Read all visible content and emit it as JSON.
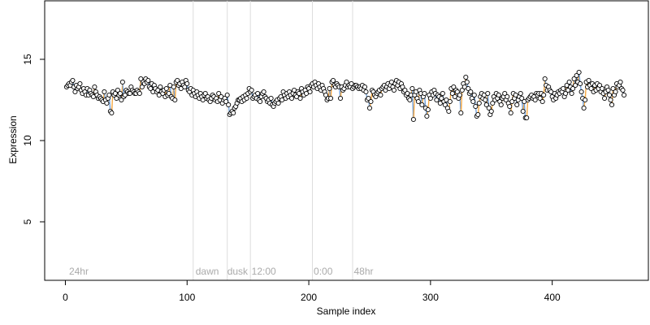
{
  "chart_data": {
    "type": "scatter",
    "title": "",
    "xlabel": "Sample index",
    "ylabel": "Expression",
    "xlim": [
      -17,
      479
    ],
    "ylim": [
      1.4,
      18.6
    ],
    "xticks": [
      0,
      100,
      200,
      300,
      400
    ],
    "yticks": [
      5,
      10,
      15
    ],
    "grid": false,
    "region_lines_x": [
      105,
      133,
      152,
      203,
      236
    ],
    "region_labels": [
      {
        "x": 3,
        "text": "24hr"
      },
      {
        "x": 107,
        "text": "dawn"
      },
      {
        "x": 133,
        "text": "dusk"
      },
      {
        "x": 153,
        "text": "12:00"
      },
      {
        "x": 204,
        "text": "0:00"
      },
      {
        "x": 237,
        "text": "48hr"
      }
    ],
    "colors": {
      "point_fill": "#ffffff",
      "point_stroke": "#000000",
      "segment_up": "#f5a742",
      "segment_down": "#6f9fd8",
      "fill_up": "#f8c98a",
      "fill_down": "#a9c4e8",
      "region_line": "#dddddd",
      "region_text": "#aaaaaa"
    },
    "series": [
      {
        "step": 1,
        "x0": 1,
        "y": [
          13.3,
          13.4,
          13.5,
          13.4,
          13.6,
          13.7,
          13.3,
          13.0,
          13.4,
          13.2,
          13.3,
          13.5,
          13.1,
          12.9,
          13.2,
          13.0,
          12.8,
          13.2,
          12.8,
          13.1,
          12.9,
          12.8,
          12.7,
          13.3,
          13.0,
          12.8,
          12.6,
          12.7,
          12.6,
          12.5,
          12.4,
          13.0,
          12.5,
          12.3,
          12.6,
          12.8,
          11.8,
          11.7,
          13.0,
          12.8,
          12.9,
          12.6,
          13.1,
          12.8,
          12.9,
          12.5,
          13.6,
          12.7,
          12.8,
          13.1,
          13.0,
          12.9,
          12.9,
          13.3,
          13.1,
          13.0,
          12.9,
          12.9,
          13.1,
          13.0,
          12.9,
          13.8,
          13.3,
          13.6,
          13.5,
          13.8,
          13.6,
          13.7,
          13.3,
          13.2,
          13.5,
          13.0,
          13.4,
          13.2,
          13.0,
          13.1,
          12.8,
          13.3,
          13.0,
          12.9,
          13.1,
          12.7,
          13.2,
          12.8,
          12.9,
          13.4,
          12.7,
          12.6,
          13.3,
          12.5,
          13.6,
          13.7,
          13.4,
          13.5,
          13.2,
          13.6,
          13.4,
          13.3,
          13.7,
          13.5,
          13.1,
          13.0,
          13.2,
          12.8,
          13.1,
          12.9,
          12.7,
          13.0,
          12.8,
          12.6,
          12.9,
          12.7,
          12.5,
          12.8,
          12.9,
          12.6,
          12.7,
          12.5,
          12.4,
          12.6,
          12.8,
          12.7,
          12.5,
          12.6,
          12.4,
          12.9,
          12.5,
          12.7,
          12.3,
          12.5,
          12.6,
          12.4,
          12.8,
          12.2,
          11.6,
          11.7,
          11.8,
          11.7,
          12.0,
          12.1,
          12.3,
          12.5,
          12.5,
          12.6,
          12.4,
          12.7,
          12.5,
          12.8,
          12.6,
          12.9,
          13.2,
          13.0,
          13.1,
          12.6,
          12.7,
          12.8,
          12.6,
          12.9,
          12.5,
          12.4,
          12.7,
          12.9,
          13.0,
          12.7,
          12.6,
          12.4,
          12.5,
          12.3,
          12.6,
          12.2,
          12.1,
          12.3,
          12.4,
          12.5,
          12.3,
          12.6,
          12.7,
          12.5,
          13.0,
          12.8,
          12.6,
          12.9,
          12.7,
          13.0,
          12.8,
          12.6,
          12.9,
          13.1,
          12.8,
          12.7,
          13.0,
          12.9,
          12.6,
          13.2,
          13.0,
          12.8,
          13.1,
          12.9,
          13.3,
          13.2,
          13.0,
          13.4,
          13.5,
          13.3,
          13.6,
          13.4,
          13.2,
          13.5,
          13.3,
          13.1,
          13.4,
          13.2,
          13.0,
          12.8,
          12.5,
          12.6,
          13.2,
          12.6,
          13.6,
          13.7,
          13.4,
          13.3,
          13.5,
          13.4,
          13.3,
          12.6,
          13.3,
          13.1,
          13.2,
          13.4,
          13.6,
          13.3,
          13.4,
          13.3,
          13.5,
          13.2,
          13.3,
          13.4,
          13.4,
          13.3,
          13.2,
          13.3,
          13.2,
          13.4,
          13.1,
          13.3,
          13.0,
          12.5,
          12.6,
          12.0,
          12.4,
          13.1,
          13.0,
          12.8,
          12.7,
          12.9,
          13.0,
          13.1,
          12.8,
          13.2,
          13.3,
          13.4,
          13.1,
          13.3,
          13.5,
          13.2,
          13.4,
          13.6,
          13.3,
          13.1,
          13.5,
          13.7,
          13.4,
          13.6,
          13.2,
          13.5,
          13.3,
          13.0,
          13.1,
          12.8,
          12.9,
          12.6,
          12.5,
          12.8,
          13.2,
          11.3,
          12.8,
          13.0,
          12.6,
          12.4,
          13.1,
          12.9,
          12.2,
          12.7,
          12.9,
          12.0,
          11.5,
          11.9,
          12.8,
          12.6,
          13.0,
          12.8,
          13.1,
          12.9,
          12.5,
          12.8,
          12.7,
          12.3,
          12.6,
          12.9,
          12.4,
          12.2,
          12.5,
          12.0,
          11.8,
          12.4,
          13.2,
          12.9,
          13.3,
          12.7,
          13.1,
          13.0,
          12.6,
          12.8,
          11.7,
          13.1,
          13.5,
          13.3,
          13.9,
          13.6,
          13.2,
          12.9,
          13.0,
          12.6,
          12.4,
          12.8,
          12.1,
          11.5,
          11.6,
          12.3,
          12.7,
          12.9,
          12.6,
          12.8,
          12.5,
          12.2,
          12.9,
          12.0,
          11.6,
          11.8,
          12.3,
          12.7,
          12.5,
          12.9,
          12.6,
          12.8,
          12.4,
          12.2,
          12.6,
          12.7,
          12.9,
          12.5,
          12.7,
          12.3,
          12.1,
          11.7,
          12.4,
          12.9,
          12.6,
          12.8,
          12.2,
          12.5,
          12.7,
          12.9,
          12.6,
          11.8,
          12.4,
          11.4,
          11.4,
          12.5,
          12.6,
          12.7,
          12.8,
          12.6,
          12.7,
          12.5,
          12.9,
          12.8,
          12.9,
          12.6,
          12.9,
          12.4,
          12.8,
          13.8,
          13.4,
          13.1,
          13.3,
          13.1,
          13.0,
          12.7,
          12.5,
          12.9,
          12.6,
          12.8,
          13.0,
          12.9,
          13.1,
          13.0,
          13.2,
          12.7,
          12.9,
          13.4,
          13.1,
          13.6,
          13.3,
          12.9,
          13.2,
          13.8,
          13.4,
          14.0,
          13.6,
          14.2,
          13.5,
          13.0,
          12.6,
          12.0,
          12.5,
          13.6,
          13.3,
          13.7,
          13.4,
          13.2,
          13.5,
          13.0,
          13.4,
          13.1,
          13.5,
          13.2,
          13.4,
          13.0,
          13.2,
          12.9,
          12.6,
          13.0,
          13.3,
          13.1,
          12.8,
          12.5,
          12.2,
          13.2,
          12.8,
          13.0,
          13.5,
          13.3,
          13.4,
          13.6,
          13.2,
          13.1,
          12.8
        ]
      }
    ]
  }
}
